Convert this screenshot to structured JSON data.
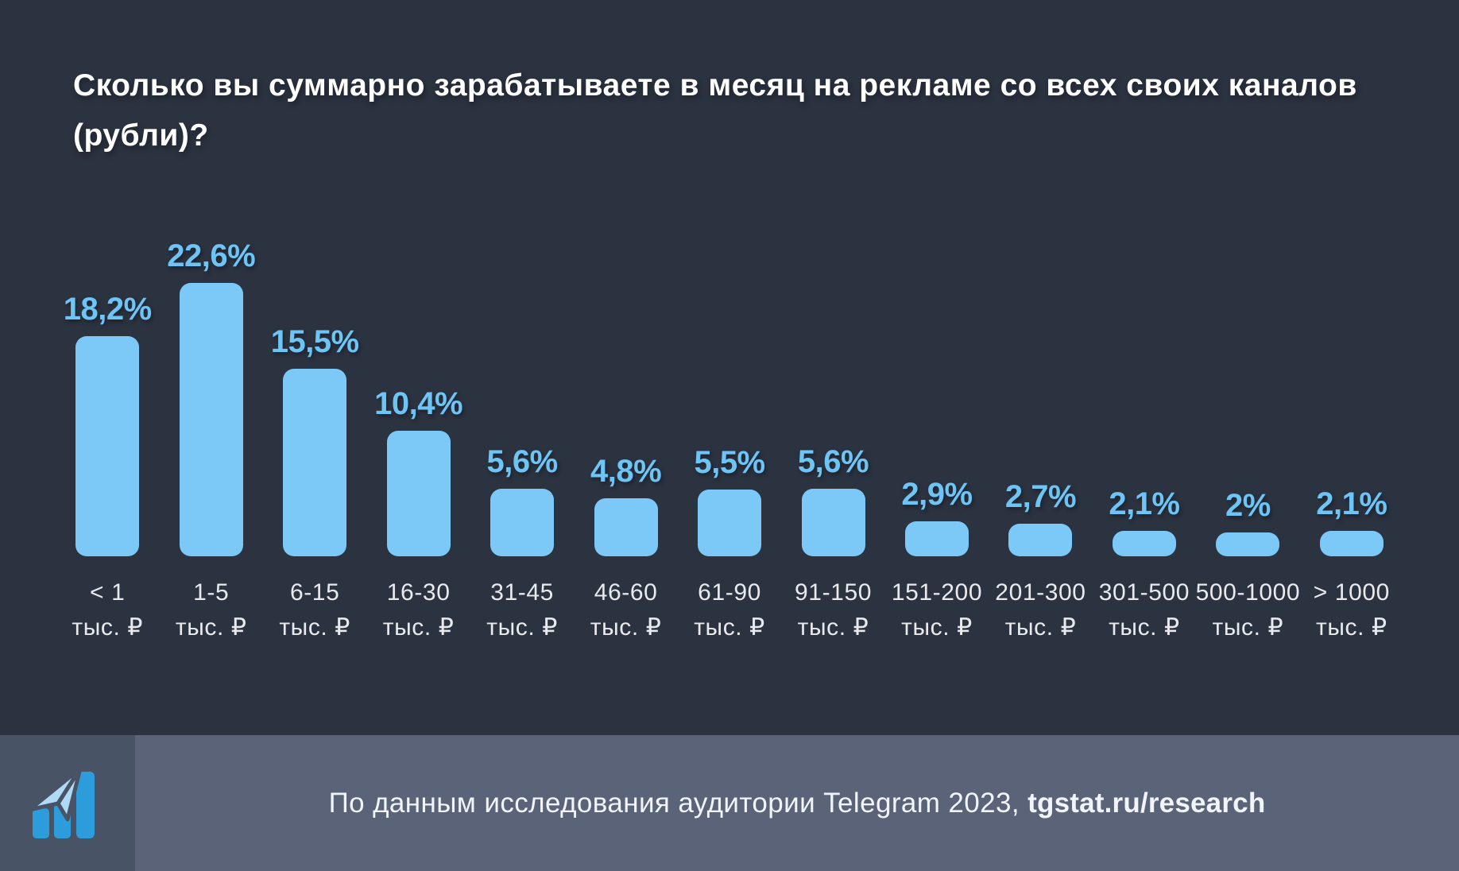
{
  "title": "Сколько вы суммарно зарабатываете в месяц на рекламе со всех своих каналов (рубли)?",
  "chart_data": {
    "type": "bar",
    "title": "Сколько вы суммарно зарабатываете в месяц на рекламе со всех своих каналов (рубли)?",
    "categories": [
      "< 1",
      "1-5",
      "6-15",
      "16-30",
      "31-45",
      "46-60",
      "61-90",
      "91-150",
      "151-200",
      "201-300",
      "301-500",
      "500-1000",
      "> 1000"
    ],
    "category_unit": "тыс. ₽",
    "values": [
      18.2,
      22.6,
      15.5,
      10.4,
      5.6,
      4.8,
      5.5,
      5.6,
      2.9,
      2.7,
      2.1,
      2,
      2.1
    ],
    "value_labels": [
      "18,2%",
      "22,6%",
      "15,5%",
      "10,4%",
      "5,6%",
      "4,8%",
      "5,5%",
      "5,6%",
      "2,9%",
      "2,7%",
      "2,1%",
      "2%",
      "2,1%"
    ],
    "xlabel": "",
    "ylabel": "",
    "ylim": [
      0,
      22.6
    ],
    "grid": false,
    "legend": false,
    "bar_color": "#7CC9F7",
    "value_label_color": "#6EC4F4"
  },
  "footer": {
    "source_text": "По данным исследования аудитории Telegram 2023, ",
    "source_link": "tgstat.ru/research",
    "logo": "tgstat-logo"
  },
  "colors": {
    "background": "#2C3340",
    "bar": "#7CC9F7",
    "value_label": "#6EC4F4",
    "axis_label": "#E8EAEE",
    "title": "#FFFFFF",
    "footer_band": "#5A6377",
    "footer_logo_band": "#495366",
    "footer_text": "#F1F4F8",
    "logo_blue": "#2D9CDB",
    "logo_light": "#AFD9F5"
  }
}
